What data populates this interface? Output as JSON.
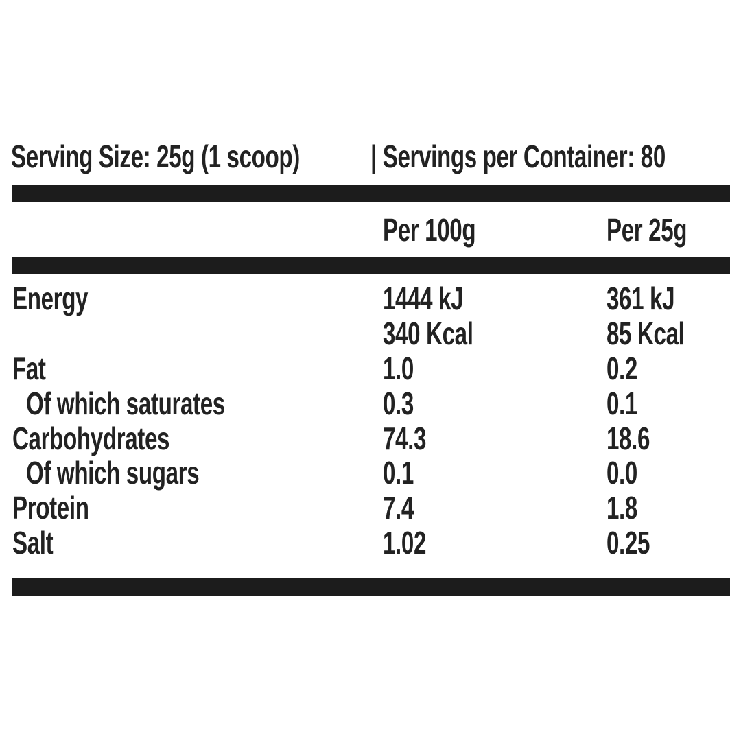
{
  "header": {
    "serving_size": "Serving Size: 25g (1 scoop)",
    "servings_per_container": "| Servings per Container: 80"
  },
  "table": {
    "columns": [
      "Per 100g",
      "Per 25g"
    ],
    "energy": {
      "label": "Energy",
      "per_100g": [
        "1444 kJ",
        "340 Kcal"
      ],
      "per_25g": [
        "361 kJ",
        "85 Kcal"
      ]
    },
    "rows": [
      [
        "Fat",
        "1.0",
        "0.2"
      ],
      [
        "Of which saturates",
        "0.3",
        "0.1"
      ],
      [
        "Carbohydrates",
        "74.3",
        "18.6"
      ],
      [
        "Of which sugars",
        "0.1",
        "0.0"
      ],
      [
        "Protein",
        "7.4",
        "1.8"
      ],
      [
        "Salt",
        "1.02",
        "0.25"
      ]
    ]
  }
}
